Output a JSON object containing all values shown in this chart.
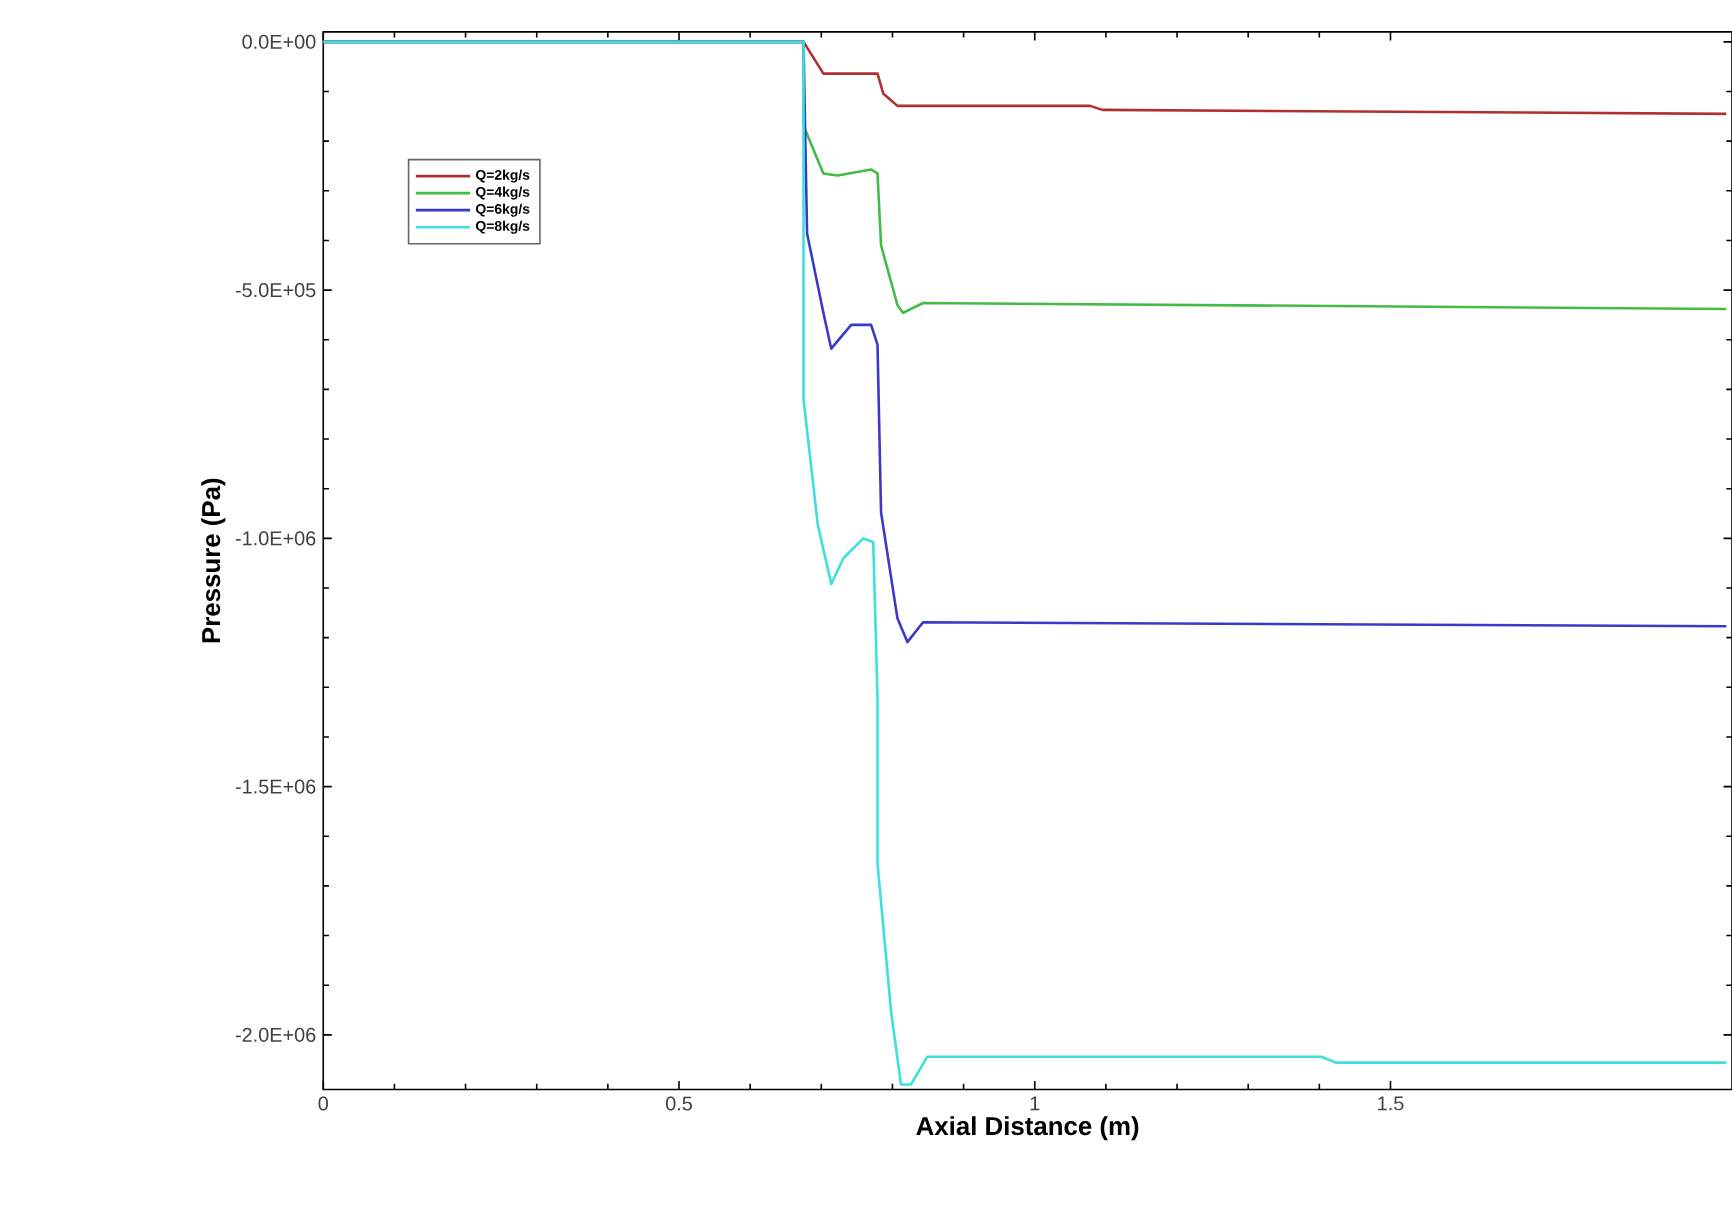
{
  "chart_data": {
    "type": "line",
    "xlabel": "Axial Distance (m)",
    "ylabel": "Pressure (Pa)",
    "xlim": [
      0,
      1.98
    ],
    "ylim": [
      -2110000,
      20000
    ],
    "xticks": [
      0,
      0.5,
      1,
      1.5
    ],
    "yticks": [
      {
        "value": 0,
        "label": "0.0E+00"
      },
      {
        "value": -500000,
        "label": "-5.0E+05"
      },
      {
        "value": -1000000,
        "label": "-1.0E+06"
      },
      {
        "value": -1500000,
        "label": "-1.5E+06"
      },
      {
        "value": -2000000,
        "label": "-2.0E+06"
      }
    ],
    "grid": false,
    "legend": "top left",
    "marker": "none",
    "line_style": "solid",
    "series": [
      {
        "name": "Q=2kg/s",
        "color": "#b03030",
        "x": [
          0,
          0.675,
          0.703,
          0.779,
          0.787,
          0.807,
          1.078,
          1.095,
          1.972
        ],
        "values": [
          0,
          0,
          -64000,
          -64000,
          -104000,
          -129000,
          -129000,
          -137000,
          -145000
        ]
      },
      {
        "name": "Q=4kg/s",
        "color": "#44bb44",
        "x": [
          0,
          0.675,
          0.675,
          0.703,
          0.723,
          0.77,
          0.779,
          0.784,
          0.807,
          0.815,
          0.843,
          1.972
        ],
        "values": [
          0,
          0,
          -169000,
          -265000,
          -269000,
          -257000,
          -265000,
          -410000,
          -530000,
          -546000,
          -526000,
          -538000
        ]
      },
      {
        "name": "Q=6kg/s",
        "color": "#3a3ac8",
        "x": [
          0,
          0.675,
          0.68,
          0.703,
          0.714,
          0.742,
          0.77,
          0.779,
          0.784,
          0.807,
          0.821,
          0.843,
          1.972
        ],
        "values": [
          0,
          0,
          -386000,
          -546000,
          -618000,
          -570000,
          -570000,
          -610000,
          -948000,
          -1161000,
          -1209000,
          -1169000,
          -1177000
        ]
      },
      {
        "name": "Q=8kg/s",
        "color": "#40dede",
        "x": [
          0,
          0.675,
          0.675,
          0.695,
          0.714,
          0.731,
          0.759,
          0.773,
          0.779,
          0.779,
          0.798,
          0.812,
          0.826,
          0.849,
          1.403,
          1.423,
          1.972
        ],
        "values": [
          0,
          0,
          -719000,
          -972000,
          -1092000,
          -1040000,
          -1000000,
          -1008000,
          -1321000,
          -1655000,
          -1952000,
          -2100000,
          -2100000,
          -2044000,
          -2044000,
          -2056000,
          -2056000
        ]
      }
    ]
  }
}
